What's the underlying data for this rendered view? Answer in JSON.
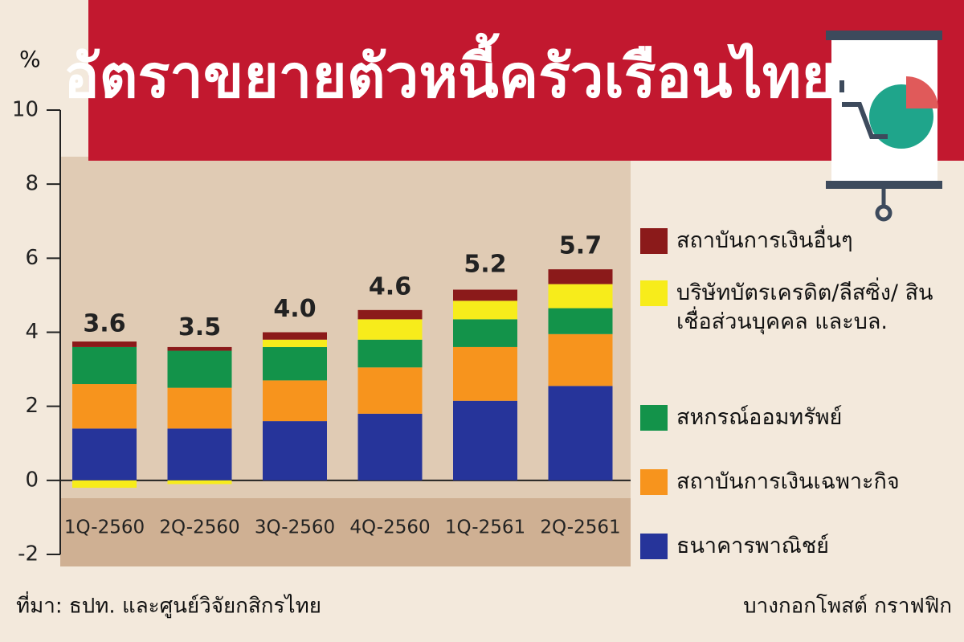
{
  "chart_data": {
    "type": "stacked_bar",
    "title": "อัตราขยายตัวหนี้ครัวเรือนไทย",
    "y_label": "%",
    "categories": [
      "1Q-2560",
      "2Q-2560",
      "3Q-2560",
      "4Q-2560",
      "1Q-2561",
      "2Q-2561"
    ],
    "series": [
      {
        "name": "ธนาคารพาณิชย์",
        "color": "#26349a",
        "values": [
          1.4,
          1.4,
          1.6,
          1.8,
          2.15,
          2.55
        ]
      },
      {
        "name": "สถาบันการเงินเฉพาะกิจ",
        "color": "#f7941d",
        "values": [
          1.2,
          1.1,
          1.1,
          1.25,
          1.45,
          1.4
        ]
      },
      {
        "name": "สหกรณ์ออมทรัพย์",
        "color": "#13934a",
        "values": [
          1.0,
          1.0,
          0.9,
          0.75,
          0.75,
          0.7
        ]
      },
      {
        "name": "บริษัทบัตรเครดิต/ลีสซิ่ง/ สินเชื่อส่วนบุคคล และบล.",
        "color": "#f7ec1b",
        "values": [
          -0.2,
          -0.1,
          0.2,
          0.55,
          0.5,
          0.65
        ]
      },
      {
        "name": "สถาบันการเงินอื่นๆ",
        "color": "#8b1a1a",
        "values": [
          0.15,
          0.1,
          0.2,
          0.25,
          0.3,
          0.4
        ]
      }
    ],
    "totals": [
      3.6,
      3.5,
      4.0,
      4.6,
      5.2,
      5.7
    ],
    "total_labels": [
      "3.6",
      "3.5",
      "4.0",
      "4.6",
      "5.2",
      "5.7"
    ],
    "ylim": [
      -2,
      10
    ],
    "yticks": [
      -2,
      0,
      2,
      4,
      6,
      8,
      10
    ],
    "source": "ที่มา: ธปท. และศูนย์วิจัยกสิกรไทย",
    "credit": "บางกอกโพสต์ กราฟฟิก"
  }
}
